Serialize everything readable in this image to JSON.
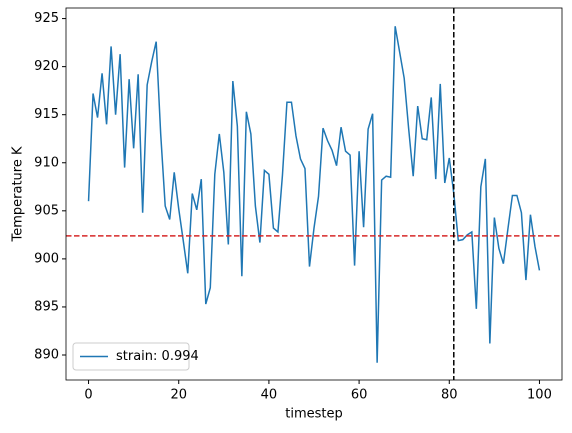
{
  "chart_data": {
    "type": "line",
    "x": [
      0,
      1,
      2,
      3,
      4,
      5,
      6,
      7,
      8,
      9,
      10,
      11,
      12,
      13,
      14,
      15,
      16,
      17,
      18,
      19,
      20,
      21,
      22,
      23,
      24,
      25,
      26,
      27,
      28,
      29,
      30,
      31,
      32,
      33,
      34,
      35,
      36,
      37,
      38,
      39,
      40,
      41,
      42,
      43,
      44,
      45,
      46,
      47,
      48,
      49,
      50,
      51,
      52,
      53,
      54,
      55,
      56,
      57,
      58,
      59,
      60,
      61,
      62,
      63,
      64,
      65,
      66,
      67,
      68,
      69,
      70,
      71,
      72,
      73,
      74,
      75,
      76,
      77,
      78,
      79,
      80,
      81,
      82,
      83,
      84,
      85,
      86,
      87,
      88,
      89,
      90,
      91,
      92,
      93,
      94,
      95,
      96,
      97,
      98,
      99,
      100
    ],
    "series": [
      {
        "name": "strain: 0.994",
        "color": "#1f77b4",
        "values": [
          906,
          917.2,
          914.7,
          919.3,
          914,
          922.1,
          915,
          921.3,
          909.5,
          918.7,
          911.5,
          919.2,
          904.8,
          918.1,
          920.5,
          922.6,
          913,
          905.5,
          904.1,
          909,
          905.2,
          901.9,
          898.5,
          906.8,
          905.1,
          908.3,
          895.3,
          897,
          908.8,
          913,
          909,
          901.5,
          918.5,
          913.8,
          898.2,
          915.3,
          913,
          905.5,
          901.7,
          909.2,
          908.8,
          903.2,
          902.8,
          908.7,
          916.3,
          916.3,
          912.8,
          910.4,
          909.4,
          899.2,
          903.2,
          906.5,
          913.6,
          912.3,
          911.3,
          909.7,
          913.7,
          911.2,
          910.8,
          899.3,
          911.2,
          903.3,
          913.5,
          915.1,
          889.2,
          908.2,
          908.6,
          908.5,
          924.2,
          921.5,
          918.8,
          913.5,
          908.6,
          915.9,
          912.5,
          912.4,
          916.8,
          908.3,
          918.2,
          907.9,
          910.5,
          906.8,
          901.9,
          902,
          902.5,
          902.8,
          894.8,
          907.5,
          910.4,
          891.2,
          904.3,
          901.1,
          899.5,
          903.1,
          906.6,
          906.6,
          904.8,
          897.8,
          904.6,
          901.3,
          898.8
        ]
      }
    ],
    "xlabel": "timestep",
    "ylabel": "Temperature K",
    "xlim": [
      -5,
      105
    ],
    "ylim": [
      887.4,
      926.1
    ],
    "xticks": [
      0,
      20,
      40,
      60,
      80,
      100
    ],
    "yticks": [
      890,
      895,
      900,
      905,
      910,
      915,
      920,
      925
    ],
    "hline": {
      "value": 902.4,
      "color": "#d62728"
    },
    "vline": {
      "value": 81,
      "color": "#000000"
    },
    "legend": "lower left",
    "grid": false
  }
}
